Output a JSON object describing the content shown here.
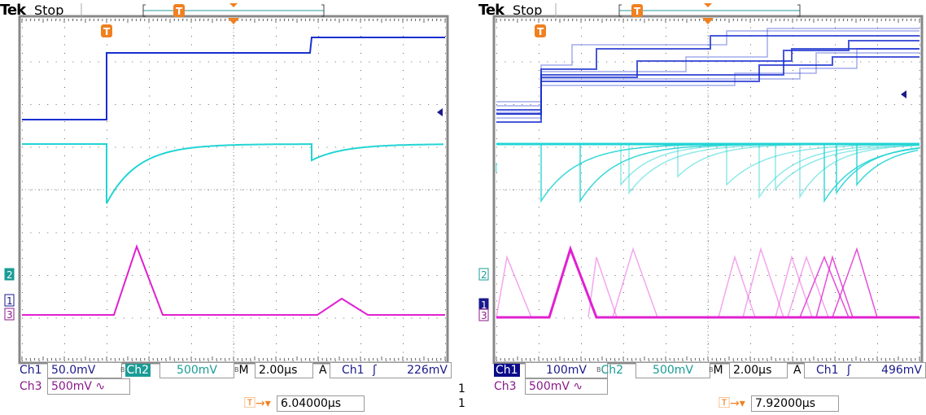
{
  "scopes": [
    {
      "brand": "Tek",
      "status": "Stop",
      "ch1": {
        "label": "Ch1",
        "scale": "50.0mV",
        "selected": false
      },
      "ch2": {
        "label": "Ch2",
        "scale": "500mV",
        "selected": true
      },
      "ch3": {
        "label": "Ch3",
        "scale": "500mV",
        "coupling_icon": "∿"
      },
      "timebase": {
        "label": "M",
        "value": "2.00µs"
      },
      "trigger": {
        "mode": "A",
        "source": "Ch1",
        "slope_icon": "rising-edge",
        "level": "226mV"
      },
      "trigger_position": "6.04000µs",
      "markers": [
        "2",
        "1",
        "3"
      ],
      "side_numbers": [
        "1",
        "1"
      ]
    },
    {
      "brand": "Tek",
      "status": "Stop",
      "ch1": {
        "label": "Ch1",
        "scale": "100mV",
        "selected": true
      },
      "ch2": {
        "label": "Ch2",
        "scale": "500mV",
        "selected": false
      },
      "ch3": {
        "label": "Ch3",
        "scale": "500mV",
        "coupling_icon": "∿"
      },
      "timebase": {
        "label": "M",
        "value": "2.00µs"
      },
      "trigger": {
        "mode": "A",
        "source": "Ch1",
        "slope_icon": "rising-edge",
        "level": "496mV"
      },
      "trigger_position": "7.92000µs",
      "markers": [
        "2",
        "1",
        "3"
      ]
    }
  ],
  "colors": {
    "ch1": "#1a2fd0",
    "ch2": "#22d4d4",
    "ch3": "#e020d0",
    "trigger": "#f08020"
  }
}
